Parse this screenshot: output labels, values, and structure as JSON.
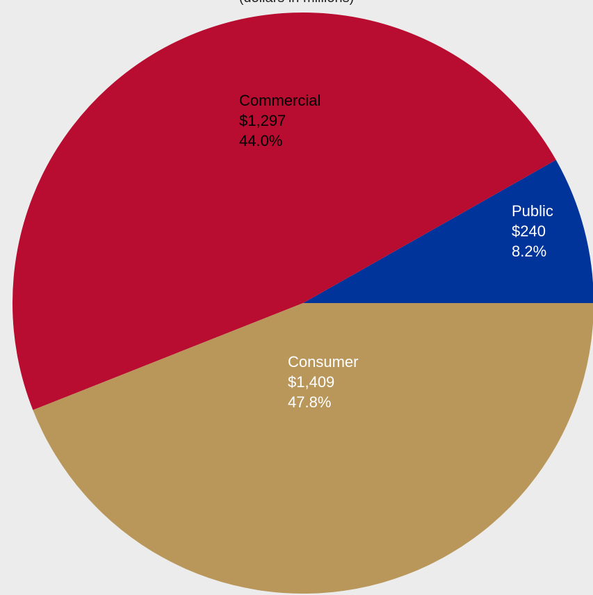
{
  "chart_data": {
    "type": "pie",
    "subtitle": "(dollars in millions)",
    "slices": [
      {
        "name": "Public",
        "value": "$240",
        "percent": "8.2%",
        "fraction": 0.082,
        "color": "#00349a",
        "label_color": "#ffffff"
      },
      {
        "name": "Consumer",
        "value": "$1,409",
        "percent": "47.8%",
        "fraction": 0.478,
        "color": "#b80c30",
        "label_color": "#ffffff"
      },
      {
        "name": "Commercial",
        "value": "$1,297",
        "percent": "44.0%",
        "fraction": 0.44,
        "color": "#b9975b",
        "label_color": "#000000"
      }
    ]
  }
}
